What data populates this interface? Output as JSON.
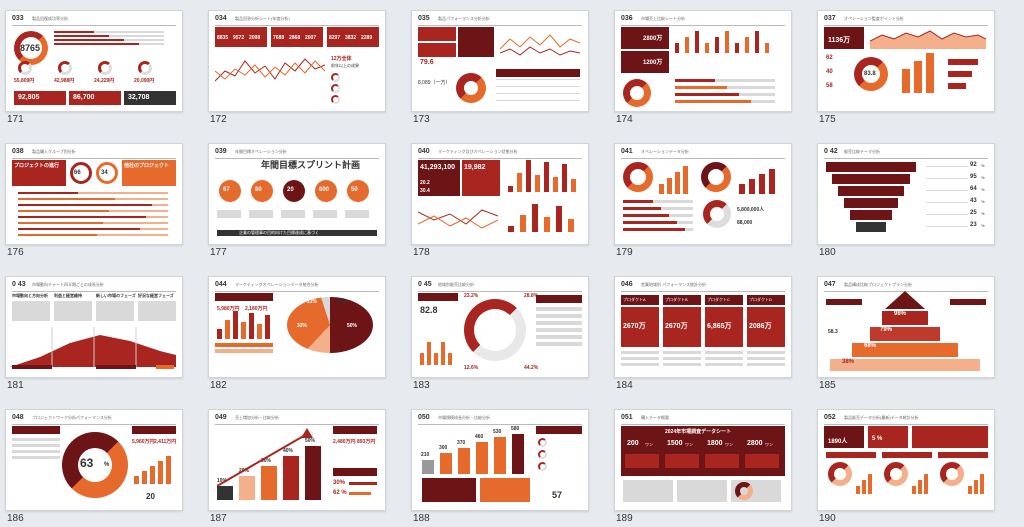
{
  "slides": [
    {
      "num": "033",
      "caption": "171",
      "title": "製品回復成功率分析"
    },
    {
      "num": "034",
      "caption": "172",
      "title": "製品回答分析シート(年度分析)"
    },
    {
      "num": "035",
      "caption": "173",
      "title": "製品パフォーマンス分析分析"
    },
    {
      "num": "036",
      "caption": "174",
      "title": "市場売上比較シート分析"
    },
    {
      "num": "037",
      "caption": "175",
      "title": "オペレーション監査ポイント分析"
    },
    {
      "num": "038",
      "caption": "176",
      "title": "製品購入グループ別分析"
    },
    {
      "num": "039",
      "caption": "177",
      "title": "年間目標オペレーション分析"
    },
    {
      "num": "040",
      "caption": "178",
      "title": "マーケティング及びオペレーション状態分析"
    },
    {
      "num": "041",
      "caption": "179",
      "title": "オペレーションデータ分析"
    },
    {
      "num": "0 42",
      "caption": "180",
      "title": "販売比較テーマ分析"
    },
    {
      "num": "0 43",
      "caption": "181",
      "title": "市場動向チャート四半期ごとの成長分析"
    },
    {
      "num": "044",
      "caption": "182",
      "title": "マーケティングオペレーションデータ統合分析"
    },
    {
      "num": "0 45",
      "caption": "183",
      "title": "地域別販売比較分析"
    },
    {
      "num": "046",
      "caption": "184",
      "title": "営業地域別 パフォーマンス統計分析"
    },
    {
      "num": "047",
      "caption": "185",
      "title": "製品構成比較プロジェクトプラン分析"
    },
    {
      "num": "048",
      "caption": "186",
      "title": "プロジェクトワーク分析パフォーマンス分析"
    },
    {
      "num": "049",
      "caption": "187",
      "title": "売上増加分析・比較分析"
    },
    {
      "num": "050",
      "caption": "188",
      "title": "市場規模成長分析・比較分析"
    },
    {
      "num": "051",
      "caption": "189",
      "title": "購入データ概要"
    },
    {
      "num": "052",
      "caption": "190",
      "title": "製品販売データ分析(最新)データ総計分析"
    }
  ],
  "s171": {
    "center": "8765",
    "stats": [
      "55,809円",
      "42,988円",
      "24,229円",
      "20,090円"
    ],
    "bottom": [
      "92,805",
      "86,700",
      "32,708"
    ]
  },
  "s172": {
    "stats": [
      "8835",
      "9572",
      "2098",
      "7688",
      "2868",
      "2007",
      "8297",
      "3832",
      "2289"
    ],
    "note1": "12万全体",
    "note2": "前年以上の成果"
  },
  "s173": {
    "stat": "79.6",
    "sub": "8,089（一方）"
  },
  "s174": {
    "v1": "2800万",
    "v2": "1200万"
  },
  "s175": {
    "v1": "1136万",
    "p1": "62",
    "p2": "40",
    "p3": "58",
    "pct": "83.8"
  },
  "s176": {
    "title1": "プロジェクトの進行",
    "title2": "他社のプロジェクト",
    "p1": "66",
    "p2": "34"
  },
  "s177": {
    "title": "年間目標スプリント計画",
    "pcts": [
      "67",
      "80",
      "20",
      "600",
      "50"
    ],
    "footer": "企業の管理事の目的向けた目標達成に基づく"
  },
  "s178": {
    "v1": "41,293,100",
    "v2": "19,982",
    "v3": "20.2",
    "v4": "30.4"
  },
  "s179": {
    "v1": "5,800,000人",
    "v2": "88,000"
  },
  "s180": {
    "pcts": [
      "92",
      "95",
      "64",
      "43",
      "25",
      "23"
    ],
    "units": [
      "%",
      "%",
      "%",
      "%",
      "%",
      "%"
    ]
  },
  "s181": {
    "cols": [
      "市場動向と方向分析",
      "利益と経営維持",
      "新しい市場のフェーズ",
      "好況な経営フェーズ"
    ]
  },
  "s182": {
    "v1": "5,980万円",
    "v2": "2,180万円",
    "p1": "12%",
    "p2": "25%",
    "p3": "33%",
    "p4": "50%"
  },
  "s183": {
    "v1": "82.8",
    "p1": "23.2%",
    "p2": "28.8%",
    "p3": "12.6%",
    "p4": "44.2%"
  },
  "s184": {
    "vals": [
      "2670万",
      "2670万",
      "6,865万",
      "2086万"
    ],
    "labels": [
      "プロダクトA",
      "プロダクトB",
      "プロダクトC",
      "プロダクトD"
    ]
  },
  "s185": {
    "p1": "98%",
    "p2": "79%",
    "p3": "68%",
    "p4": "38%",
    "p5": "58.3"
  },
  "s186": {
    "pct": "63",
    "unit": "%",
    "v1": "5,960万円",
    "v2": "2,411万円",
    "p2": "20"
  },
  "s187": {
    "pcts": [
      "10%",
      "20%",
      "30%",
      "40%",
      "50%"
    ],
    "v1": "2,480万円",
    "v2": "893万円",
    "p1": "30%",
    "p2": "62 %"
  },
  "s188": {
    "vals": [
      "210",
      "300",
      "370",
      "460",
      "530",
      "580"
    ],
    "stat": "57"
  },
  "s189": {
    "title": "2024年市場調査データシート",
    "vals": [
      "200",
      "1500",
      "1800",
      "2800"
    ],
    "unit": "ワン"
  },
  "s190": {
    "v1": "1890人",
    "v2": "5 %"
  }
}
